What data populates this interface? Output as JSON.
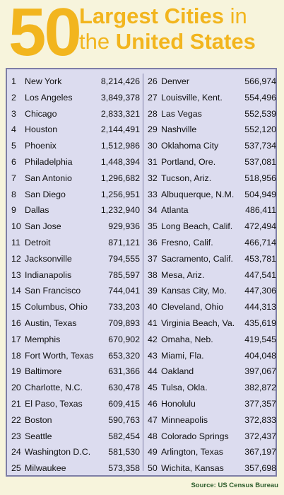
{
  "header": {
    "number": "50",
    "line1_word1": "Largest",
    "line1_word2": "Cities",
    "line1_word3": "in",
    "line2_word1": "the",
    "line2_word2": "United States"
  },
  "cities": [
    {
      "rank": "1",
      "city": "New York",
      "pop": "8,214,426"
    },
    {
      "rank": "2",
      "city": "Los Angeles",
      "pop": "3,849,378"
    },
    {
      "rank": "3",
      "city": "Chicago",
      "pop": "2,833,321"
    },
    {
      "rank": "4",
      "city": "Houston",
      "pop": "2,144,491"
    },
    {
      "rank": "5",
      "city": "Phoenix",
      "pop": "1,512,986"
    },
    {
      "rank": "6",
      "city": "Philadelphia",
      "pop": "1,448,394"
    },
    {
      "rank": "7",
      "city": "San Antonio",
      "pop": "1,296,682"
    },
    {
      "rank": "8",
      "city": "San Diego",
      "pop": "1,256,951"
    },
    {
      "rank": "9",
      "city": "Dallas",
      "pop": "1,232,940"
    },
    {
      "rank": "10",
      "city": "San Jose",
      "pop": "929,936"
    },
    {
      "rank": "11",
      "city": "Detroit",
      "pop": "871,121"
    },
    {
      "rank": "12",
      "city": "Jacksonville",
      "pop": "794,555"
    },
    {
      "rank": "13",
      "city": "Indianapolis",
      "pop": "785,597"
    },
    {
      "rank": "14",
      "city": "San Francisco",
      "pop": "744,041"
    },
    {
      "rank": "15",
      "city": "Columbus, Ohio",
      "pop": "733,203"
    },
    {
      "rank": "16",
      "city": "Austin, Texas",
      "pop": "709,893"
    },
    {
      "rank": "17",
      "city": "Memphis",
      "pop": "670,902"
    },
    {
      "rank": "18",
      "city": "Fort Worth, Texas",
      "pop": "653,320"
    },
    {
      "rank": "19",
      "city": "Baltimore",
      "pop": "631,366"
    },
    {
      "rank": "20",
      "city": "Charlotte, N.C.",
      "pop": "630,478"
    },
    {
      "rank": "21",
      "city": "El Paso, Texas",
      "pop": "609,415"
    },
    {
      "rank": "22",
      "city": "Boston",
      "pop": "590,763"
    },
    {
      "rank": "23",
      "city": "Seattle",
      "pop": "582,454"
    },
    {
      "rank": "24",
      "city": "Washington D.C.",
      "pop": "581,530"
    },
    {
      "rank": "25",
      "city": "Milwaukee",
      "pop": "573,358"
    },
    {
      "rank": "26",
      "city": "Denver",
      "pop": "566,974"
    },
    {
      "rank": "27",
      "city": "Louisville,  Kent.",
      "pop": "554,496"
    },
    {
      "rank": "28",
      "city": "Las Vegas",
      "pop": "552,539"
    },
    {
      "rank": "29",
      "city": "Nashville",
      "pop": "552,120"
    },
    {
      "rank": "30",
      "city": "Oklahoma City",
      "pop": "537,734"
    },
    {
      "rank": "31",
      "city": "Portland, Ore.",
      "pop": "537,081"
    },
    {
      "rank": "32",
      "city": "Tucson, Ariz.",
      "pop": "518,956"
    },
    {
      "rank": "33",
      "city": "Albuquerque, N.M.",
      "pop": "504,949"
    },
    {
      "rank": "34",
      "city": "Atlanta",
      "pop": "486,411"
    },
    {
      "rank": "35",
      "city": "Long Beach, Calif.",
      "pop": "472,494"
    },
    {
      "rank": "36",
      "city": "Fresno, Calif.",
      "pop": "466,714"
    },
    {
      "rank": "37",
      "city": "Sacramento, Calif.",
      "pop": "453,781"
    },
    {
      "rank": "38",
      "city": "Mesa, Ariz.",
      "pop": "447,541"
    },
    {
      "rank": "39",
      "city": "Kansas City, Mo.",
      "pop": "447,306"
    },
    {
      "rank": "40",
      "city": "Cleveland, Ohio",
      "pop": "444,313"
    },
    {
      "rank": "41",
      "city": "Virginia Beach, Va.",
      "pop": "435,619"
    },
    {
      "rank": "42",
      "city": "Omaha, Neb.",
      "pop": "419,545"
    },
    {
      "rank": "43",
      "city": "Miami, Fla.",
      "pop": "404,048"
    },
    {
      "rank": "44",
      "city": "Oakland",
      "pop": "397,067"
    },
    {
      "rank": "45",
      "city": "Tulsa, Okla.",
      "pop": "382,872"
    },
    {
      "rank": "46",
      "city": "Honolulu",
      "pop": "377,357"
    },
    {
      "rank": "47",
      "city": "Minneapolis",
      "pop": "372,833"
    },
    {
      "rank": "48",
      "city": "Colorado Springs",
      "pop": "372,437"
    },
    {
      "rank": "49",
      "city": "Arlington, Texas",
      "pop": "367,197"
    },
    {
      "rank": "50",
      "city": "Wichita, Kansas",
      "pop": "357,698"
    }
  ],
  "source": "Source: US Census  Bureau",
  "colors": {
    "title": "#f2b51e",
    "background": "#f7f4dc",
    "table_fill": "#dcdcef",
    "table_border": "#7e7ea6",
    "source_text": "#2b5c2b"
  }
}
